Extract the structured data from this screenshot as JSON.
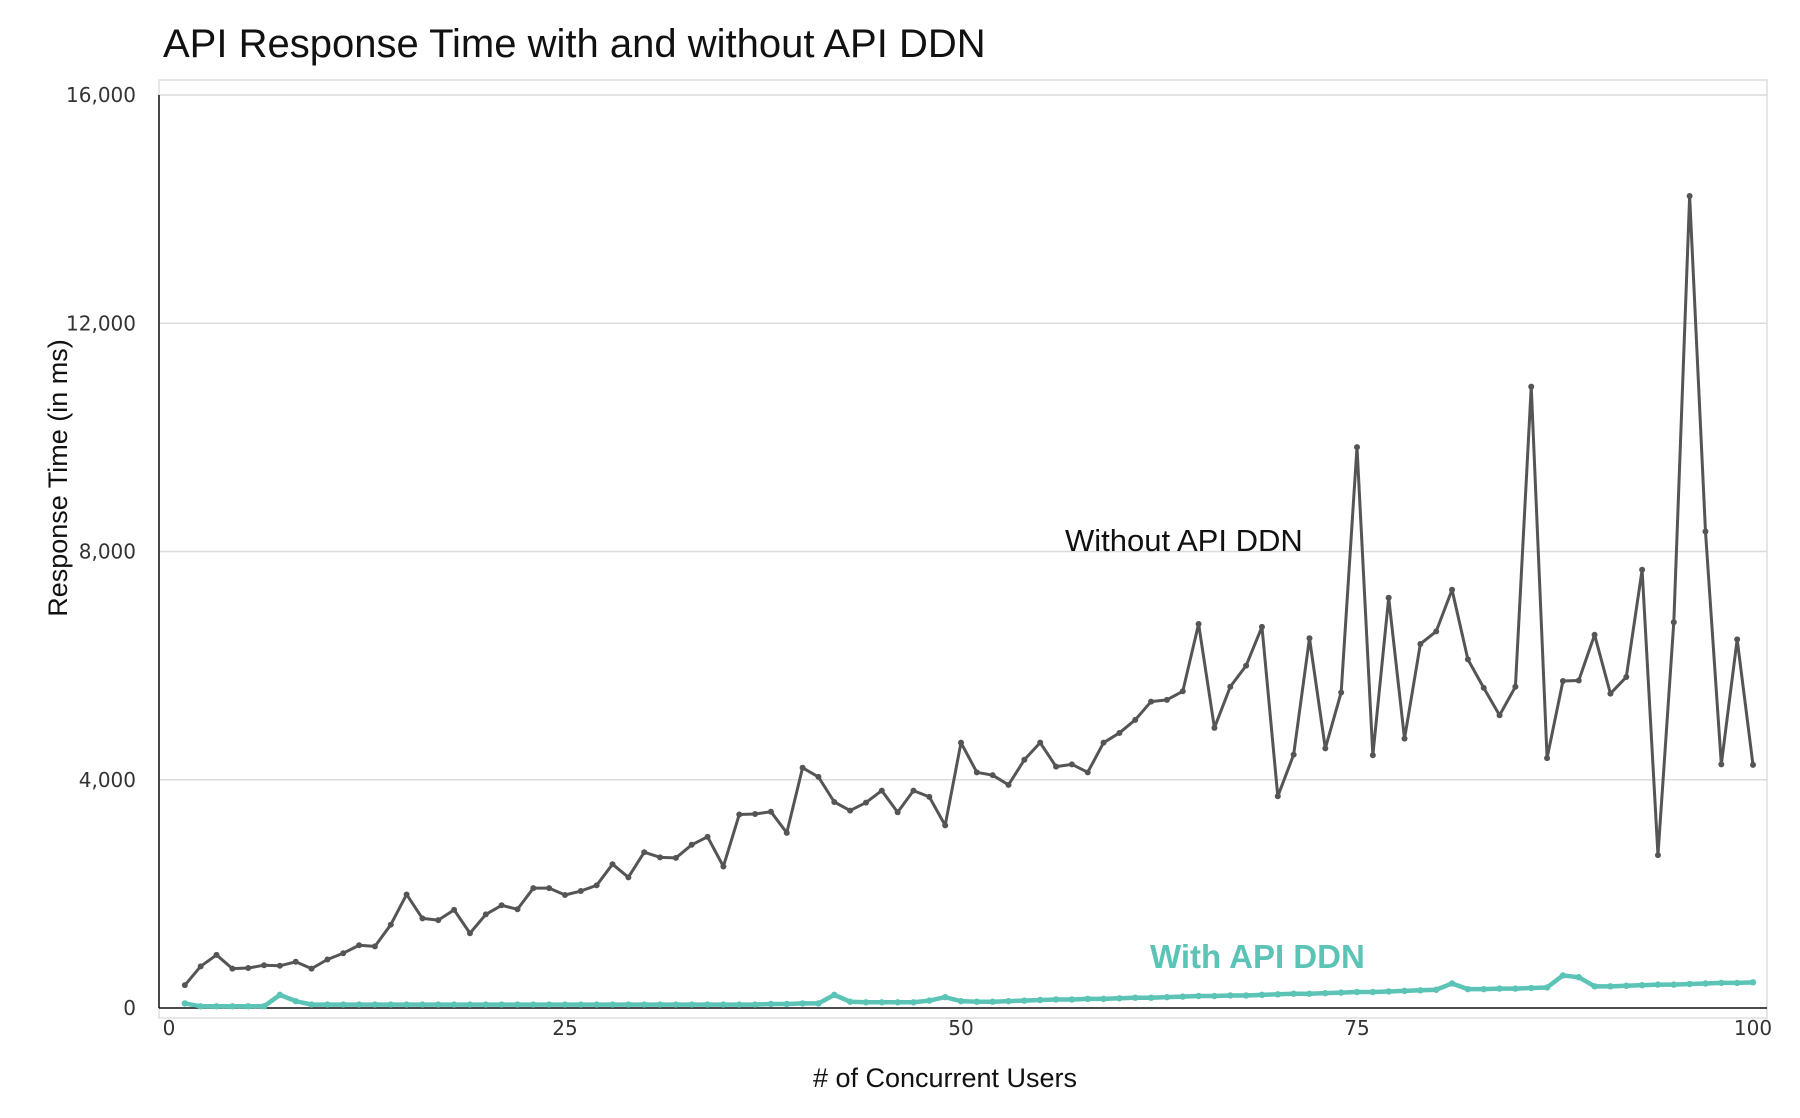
{
  "chart_data": {
    "type": "line",
    "title": "API Response Time with and without API DDN",
    "xlabel": "# of Concurrent Users",
    "ylabel": "Response Time (in ms)",
    "xlim": [
      0,
      100
    ],
    "ylim": [
      0,
      16000
    ],
    "x_ticks": [
      0,
      25,
      50,
      75,
      100
    ],
    "x_tick_labels": [
      "0",
      "25",
      "50",
      "75",
      "100"
    ],
    "y_ticks": [
      0,
      4000,
      8000,
      12000,
      16000
    ],
    "y_tick_labels": [
      "0",
      "4,000",
      "8,000",
      "12,000",
      "16,000"
    ],
    "grid": "horizontal",
    "x": [
      1,
      2,
      3,
      4,
      5,
      6,
      7,
      8,
      9,
      10,
      11,
      12,
      13,
      14,
      15,
      16,
      17,
      18,
      19,
      20,
      21,
      22,
      23,
      24,
      25,
      26,
      27,
      28,
      29,
      30,
      31,
      32,
      33,
      34,
      35,
      36,
      37,
      38,
      39,
      40,
      41,
      42,
      43,
      44,
      45,
      46,
      47,
      48,
      49,
      50,
      51,
      52,
      53,
      54,
      55,
      56,
      57,
      58,
      59,
      60,
      61,
      62,
      63,
      64,
      65,
      66,
      67,
      68,
      69,
      70,
      71,
      72,
      73,
      74,
      75,
      76,
      77,
      78,
      79,
      80,
      81,
      82,
      83,
      84,
      85,
      86,
      87,
      88,
      89,
      90,
      91,
      92,
      93,
      94,
      95,
      96,
      97,
      98,
      99,
      100
    ],
    "series": [
      {
        "name": "Without API DDN",
        "color": "#555555",
        "values": [
          400,
          730,
          930,
          690,
          700,
          750,
          740,
          810,
          690,
          850,
          960,
          1100,
          1080,
          1460,
          1990,
          1570,
          1540,
          1720,
          1310,
          1640,
          1800,
          1730,
          2100,
          2100,
          1980,
          2050,
          2150,
          2520,
          2290,
          2730,
          2640,
          2630,
          2860,
          3000,
          2480,
          3390,
          3400,
          3440,
          3070,
          4210,
          4050,
          3610,
          3460,
          3600,
          3810,
          3430,
          3810,
          3700,
          3200,
          4650,
          4130,
          4080,
          3910,
          4350,
          4650,
          4230,
          4270,
          4130,
          4650,
          4820,
          5050,
          5370,
          5400,
          5550,
          6730,
          4910,
          5630,
          6000,
          6680,
          3710,
          4440,
          6480,
          4550,
          5530,
          9830,
          4430,
          7190,
          4720,
          6380,
          6600,
          7330,
          6110,
          5610,
          5130,
          5630,
          10890,
          4380,
          5730,
          5740,
          6540,
          5510,
          5800,
          7680,
          2680,
          6760,
          14230,
          8350,
          4270,
          6460,
          4260
        ],
        "label": "Without API DDN"
      },
      {
        "name": "With API DDN",
        "color": "#5bc4b6",
        "values": [
          80,
          30,
          30,
          30,
          30,
          30,
          230,
          120,
          60,
          60,
          60,
          60,
          60,
          60,
          60,
          60,
          60,
          60,
          60,
          60,
          60,
          60,
          60,
          60,
          60,
          60,
          60,
          60,
          60,
          60,
          60,
          60,
          60,
          60,
          60,
          60,
          60,
          70,
          70,
          80,
          80,
          230,
          110,
          100,
          100,
          100,
          100,
          130,
          190,
          120,
          110,
          110,
          120,
          130,
          140,
          150,
          150,
          160,
          160,
          170,
          180,
          180,
          190,
          200,
          210,
          210,
          220,
          220,
          230,
          240,
          250,
          250,
          260,
          270,
          280,
          280,
          290,
          300,
          310,
          320,
          430,
          330,
          330,
          340,
          340,
          350,
          360,
          570,
          540,
          380,
          380,
          390,
          400,
          410,
          410,
          420,
          430,
          440,
          440,
          450
        ],
        "label": "With API DDN"
      }
    ]
  }
}
